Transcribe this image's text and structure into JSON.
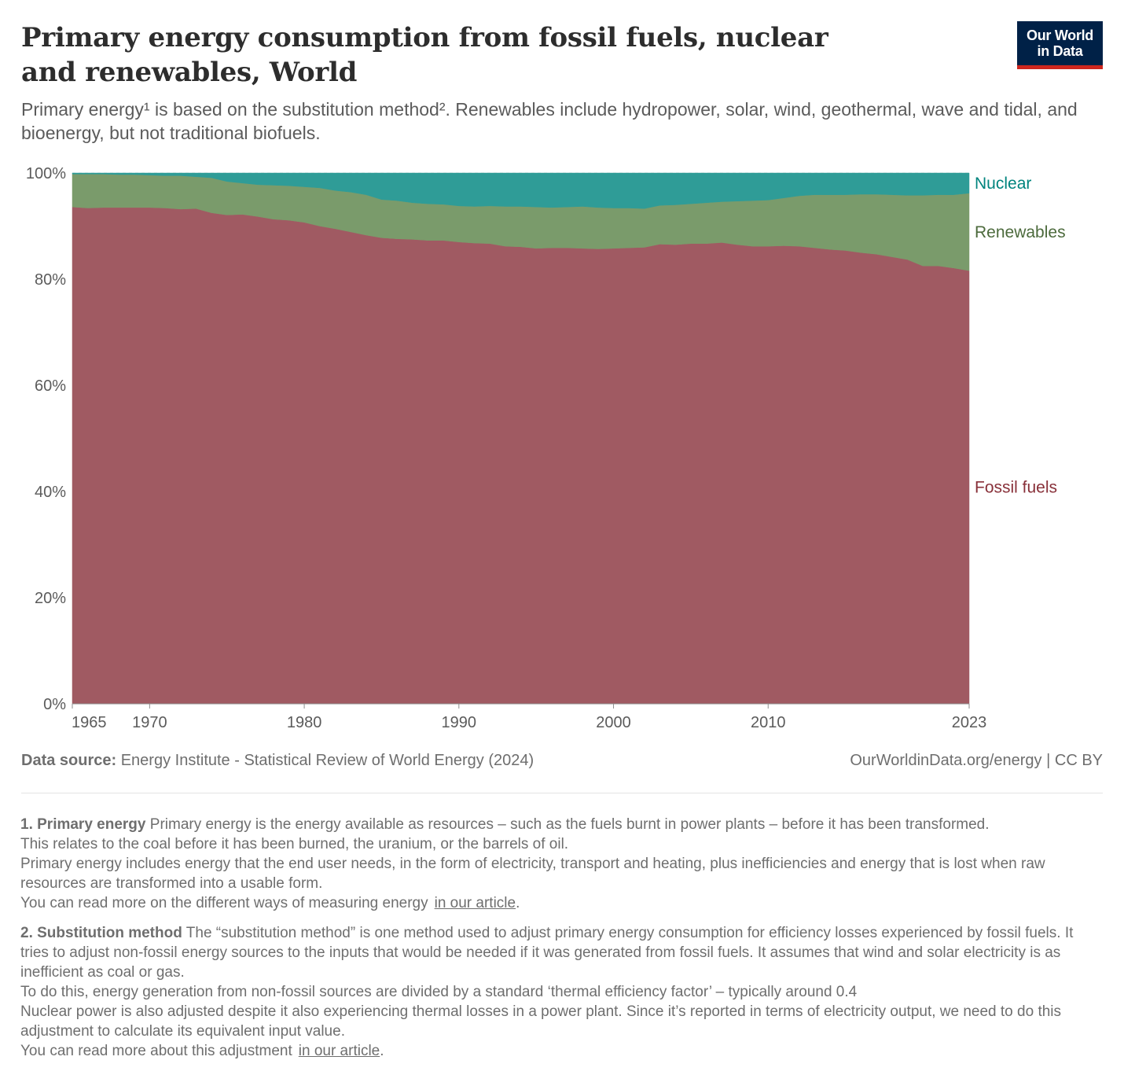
{
  "header": {
    "title": "Primary energy consumption from fossil fuels, nuclear and renewables, World",
    "subtitle": "Primary energy¹ is based on the substitution method². Renewables include hydropower, solar, wind, geothermal, wave and tidal, and bioenergy, but not traditional biofuels.",
    "logo_line1": "Our World",
    "logo_line2": "in Data"
  },
  "colors": {
    "fossil": "#a05a62",
    "renewables": "#7a9b6b",
    "nuclear": "#2f9c97",
    "fossil_label": "#883039",
    "renewables_label": "#4c6a3c",
    "nuclear_label": "#00847e"
  },
  "chart_data": {
    "type": "area",
    "stacked": true,
    "normalized": true,
    "x": [
      1965,
      1966,
      1967,
      1968,
      1969,
      1970,
      1971,
      1972,
      1973,
      1974,
      1975,
      1976,
      1977,
      1978,
      1979,
      1980,
      1981,
      1982,
      1983,
      1984,
      1985,
      1986,
      1987,
      1988,
      1989,
      1990,
      1991,
      1992,
      1993,
      1994,
      1995,
      1996,
      1997,
      1998,
      1999,
      2000,
      2001,
      2002,
      2003,
      2004,
      2005,
      2006,
      2007,
      2008,
      2009,
      2010,
      2011,
      2012,
      2013,
      2014,
      2015,
      2016,
      2017,
      2018,
      2019,
      2020,
      2021,
      2022,
      2023
    ],
    "series": [
      {
        "name": "Fossil fuels",
        "values": [
          93.6,
          93.4,
          93.5,
          93.5,
          93.5,
          93.5,
          93.4,
          93.2,
          93.3,
          92.5,
          92.1,
          92.2,
          91.8,
          91.3,
          91.1,
          90.7,
          90.0,
          89.5,
          88.9,
          88.3,
          87.8,
          87.6,
          87.5,
          87.3,
          87.3,
          87.0,
          86.8,
          86.7,
          86.2,
          86.1,
          85.8,
          85.9,
          85.9,
          85.8,
          85.7,
          85.8,
          85.9,
          86.0,
          86.6,
          86.5,
          86.7,
          86.7,
          86.9,
          86.5,
          86.2,
          86.2,
          86.3,
          86.2,
          85.9,
          85.6,
          85.4,
          85.0,
          84.7,
          84.2,
          83.7,
          82.5,
          82.5,
          82.1,
          81.6
        ]
      },
      {
        "name": "Renewables",
        "values": [
          6.2,
          6.4,
          6.3,
          6.2,
          6.2,
          6.1,
          6.1,
          6.3,
          6.0,
          6.6,
          6.3,
          5.9,
          6.0,
          6.4,
          6.5,
          6.7,
          7.2,
          7.2,
          7.5,
          7.6,
          7.2,
          7.2,
          6.9,
          6.9,
          6.8,
          6.8,
          6.9,
          7.1,
          7.5,
          7.6,
          7.8,
          7.6,
          7.7,
          7.9,
          7.8,
          7.6,
          7.5,
          7.3,
          7.3,
          7.5,
          7.5,
          7.7,
          7.7,
          8.2,
          8.6,
          8.7,
          9.0,
          9.5,
          10.0,
          10.3,
          10.5,
          11.0,
          11.3,
          11.7,
          12.1,
          13.3,
          13.4,
          13.8,
          14.6
        ]
      },
      {
        "name": "Nuclear",
        "values": [
          0.2,
          0.2,
          0.2,
          0.3,
          0.3,
          0.4,
          0.5,
          0.5,
          0.7,
          0.9,
          1.6,
          1.9,
          2.2,
          2.3,
          2.4,
          2.6,
          2.8,
          3.3,
          3.6,
          4.1,
          5.0,
          5.2,
          5.6,
          5.8,
          5.9,
          6.2,
          6.3,
          6.2,
          6.3,
          6.3,
          6.4,
          6.5,
          6.4,
          6.3,
          6.5,
          6.6,
          6.6,
          6.7,
          6.1,
          6.0,
          5.8,
          5.6,
          5.4,
          5.3,
          5.2,
          5.1,
          4.7,
          4.3,
          4.1,
          4.1,
          4.1,
          4.0,
          4.0,
          4.1,
          4.2,
          4.2,
          4.1,
          4.1,
          3.8
        ]
      }
    ],
    "title": "Primary energy consumption from fossil fuels, nuclear and renewables, World",
    "xlabel": "",
    "ylabel": "",
    "ylim": [
      0,
      100
    ],
    "yticks": [
      0,
      20,
      40,
      60,
      80,
      100
    ],
    "ytick_labels": [
      "0%",
      "20%",
      "40%",
      "60%",
      "80%",
      "100%"
    ],
    "xticks": [
      1965,
      1970,
      1980,
      1990,
      2000,
      2010,
      2023
    ],
    "xtick_labels": [
      "1965",
      "1970",
      "1980",
      "1990",
      "2000",
      "2010",
      "2023"
    ],
    "legend": "right, inline labels",
    "grid": true
  },
  "footer": {
    "source_label": "Data source:",
    "source_text": "Energy Institute - Statistical Review of World Energy (2024)",
    "url": "OurWorldinData.org/energy",
    "license": "| CC BY"
  },
  "notes": {
    "n1_title": "1. Primary energy",
    "n1_text1": "Primary energy is the energy available as resources – such as the fuels burnt in power plants – before it has been transformed.",
    "n1_text2": "This relates to the coal before it has been burned, the uranium, or the barrels of oil.",
    "n1_text3": "Primary energy includes energy that the end user needs, in the form of electricity, transport and heating, plus inefficiencies and energy that is lost when raw resources are transformed into a usable form.",
    "n1_text4": "You can read more on the different ways of measuring energy",
    "n1_link": "in our article",
    "n2_title": "2. Substitution method",
    "n2_text1": "The “substitution method” is one method used to adjust primary energy consumption for efficiency losses experienced by fossil fuels. It tries to adjust non-fossil energy sources to the inputs that would be needed if it was generated from fossil fuels. It assumes that wind and solar electricity is as inefficient as coal or gas.",
    "n2_text2": "To do this, energy generation from non-fossil sources are divided by a standard ‘thermal efficiency factor’ – typically around 0.4",
    "n2_text3": "Nuclear power is also adjusted despite it also experiencing thermal losses in a power plant. Since it’s reported in terms of electricity output, we need to do this adjustment to calculate its equivalent input value.",
    "n2_text4": "You can read more about this adjustment",
    "n2_link": "in our article"
  }
}
